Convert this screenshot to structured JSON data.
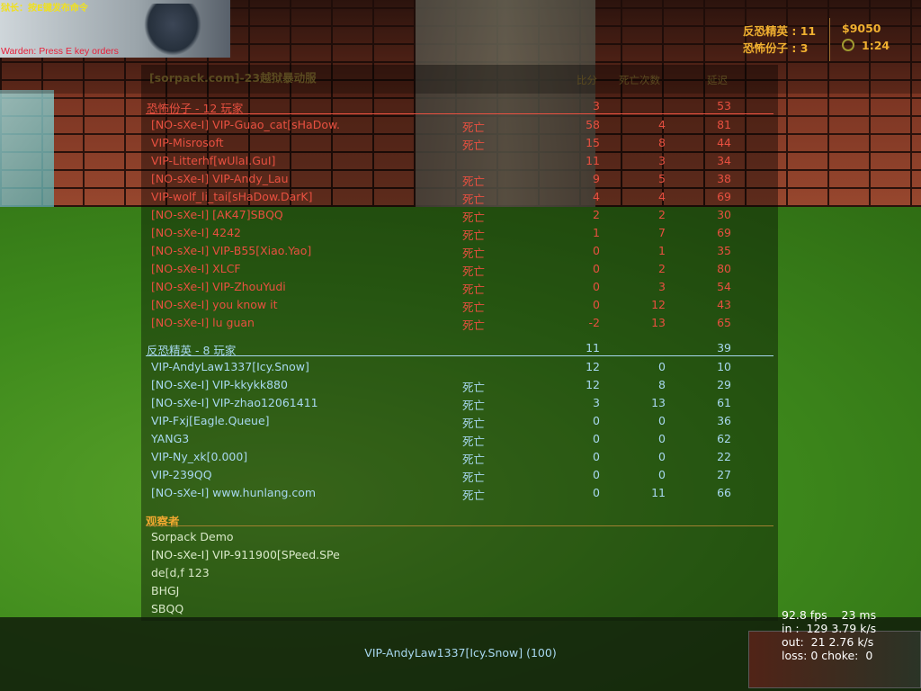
{
  "warden": {
    "cn": "狱长：按E键发布命令",
    "en": "Warden: Press E key orders"
  },
  "hud": {
    "ct_label": "反恐精英 : 11",
    "t_label": "恐怖份子 : 3",
    "money": "$9050",
    "timer": "1:24",
    "timer_icon": "stopwatch-icon"
  },
  "scoreboard": {
    "title": "[sorpack.com]-23越狱暴动服",
    "columns": {
      "score": "比分",
      "deaths": "死亡次数",
      "latency": "延迟"
    },
    "terrorists": {
      "header": "恐怖份子   -   12 玩家",
      "score": "3",
      "latency": "53",
      "color": "#e85040",
      "players": [
        {
          "name": "[NO-sXe-I] VIP-Guao_cat[sHaDow.",
          "status": "死亡",
          "score": "58",
          "deaths": "4",
          "latency": "81"
        },
        {
          "name": "VIP-Misrosoft",
          "status": "死亡",
          "score": "15",
          "deaths": "8",
          "latency": "44"
        },
        {
          "name": "VIP-Litterhf[wUlaI.GuI]",
          "status": "",
          "score": "11",
          "deaths": "3",
          "latency": "34"
        },
        {
          "name": "[NO-sXe-I] VIP-Andy_Lau",
          "status": "死亡",
          "score": "9",
          "deaths": "5",
          "latency": "38"
        },
        {
          "name": "VIP-wolf_li_tai[sHaDow.DarK]",
          "status": "死亡",
          "score": "4",
          "deaths": "4",
          "latency": "69"
        },
        {
          "name": "[NO-sXe-I] [AK47]SBQQ",
          "status": "死亡",
          "score": "2",
          "deaths": "2",
          "latency": "30"
        },
        {
          "name": "[NO-sXe-I] 4242",
          "status": "死亡",
          "score": "1",
          "deaths": "7",
          "latency": "69"
        },
        {
          "name": "[NO-sXe-I] VIP-B55[Xiao.Yao]",
          "status": "死亡",
          "score": "0",
          "deaths": "1",
          "latency": "35"
        },
        {
          "name": "[NO-sXe-I] XLCF",
          "status": "死亡",
          "score": "0",
          "deaths": "2",
          "latency": "80"
        },
        {
          "name": "[NO-sXe-I] VIP-ZhouYudi",
          "status": "死亡",
          "score": "0",
          "deaths": "3",
          "latency": "54"
        },
        {
          "name": "[NO-sXe-I] you know it",
          "status": "死亡",
          "score": "0",
          "deaths": "12",
          "latency": "43"
        },
        {
          "name": "[NO-sXe-I] lu guan",
          "status": "死亡",
          "score": "-2",
          "deaths": "13",
          "latency": "65"
        }
      ]
    },
    "counter_terrorists": {
      "header": "反恐精英   -   8 玩家",
      "score": "11",
      "latency": "39",
      "color": "#a8d8f0",
      "players": [
        {
          "name": "VIP-AndyLaw1337[Icy.Snow]",
          "status": "",
          "score": "12",
          "deaths": "0",
          "latency": "10"
        },
        {
          "name": "[NO-sXe-I] VIP-kkykk880",
          "status": "死亡",
          "score": "12",
          "deaths": "8",
          "latency": "29"
        },
        {
          "name": "[NO-sXe-I] VIP-zhao12061411",
          "status": "死亡",
          "score": "3",
          "deaths": "13",
          "latency": "61"
        },
        {
          "name": "VIP-Fxj[Eagle.Queue]",
          "status": "死亡",
          "score": "0",
          "deaths": "0",
          "latency": "36"
        },
        {
          "name": "YANG3",
          "status": "死亡",
          "score": "0",
          "deaths": "0",
          "latency": "62"
        },
        {
          "name": "VIP-Ny_xk[0.000]",
          "status": "死亡",
          "score": "0",
          "deaths": "0",
          "latency": "22"
        },
        {
          "name": "VIP-239QQ",
          "status": "死亡",
          "score": "0",
          "deaths": "0",
          "latency": "27"
        },
        {
          "name": "[NO-sXe-I] www.hunlang.com",
          "status": "死亡",
          "score": "0",
          "deaths": "11",
          "latency": "66"
        }
      ]
    },
    "spectators": {
      "header": "观察者",
      "players": [
        "Sorpack Demo",
        "[NO-sXe-I] VIP-911900[SPeed.SPe",
        "de[d,f 123",
        "BHGJ",
        "SBQQ"
      ]
    }
  },
  "spectating": "VIP-AndyLaw1337[Icy.Snow] (100)",
  "netgraph": {
    "fps": "92.8 fps    23 ms",
    "in": "in :  129 3.79 k/s",
    "out": "out:  21 2.76 k/s",
    "loss": "loss: 0 choke:  0"
  }
}
